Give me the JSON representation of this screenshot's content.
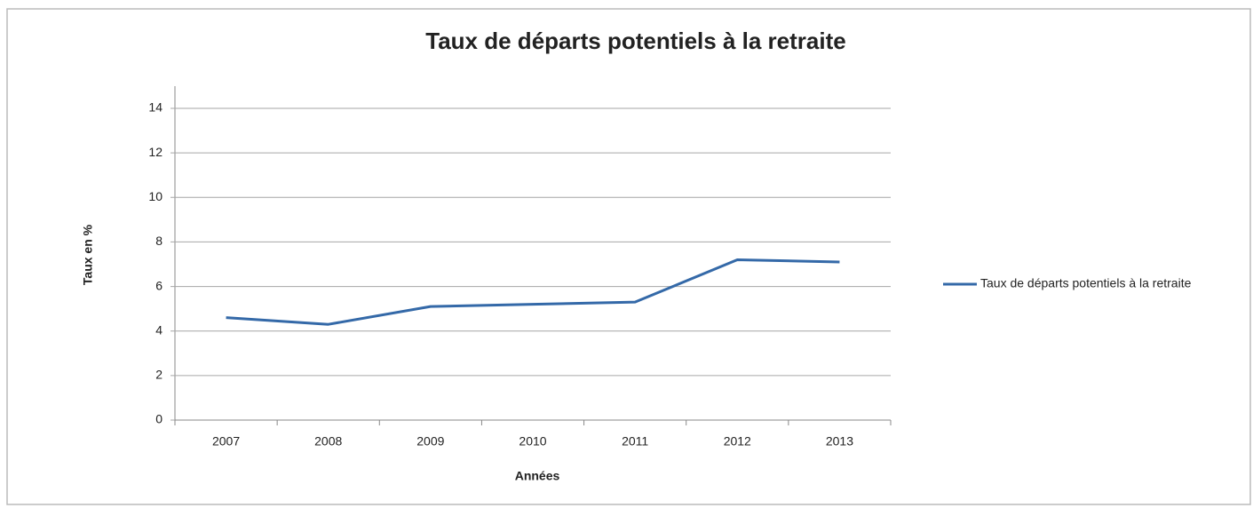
{
  "chart_data": {
    "type": "line",
    "title": "Taux de départs potentiels à la retraite",
    "x_label": "Années",
    "y_label": "Taux en %",
    "categories": [
      "2007",
      "2008",
      "2009",
      "2010",
      "2011",
      "2012",
      "2013"
    ],
    "series": [
      {
        "name": "Taux de départs potentiels à la retraite",
        "color": "#3469a8",
        "values": [
          4.6,
          4.3,
          5.1,
          5.2,
          5.3,
          7.2,
          7.1
        ]
      }
    ],
    "ylim": [
      0,
      14
    ],
    "yticks": [
      0,
      2,
      4,
      6,
      8,
      10,
      12,
      14
    ],
    "grid": true,
    "legend": "right"
  }
}
